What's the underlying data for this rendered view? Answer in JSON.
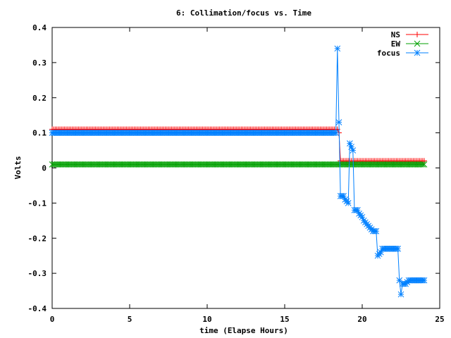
{
  "chart_data": {
    "type": "line",
    "title": "6: Collimation/focus vs. Time",
    "xlabel": "time (Elapse Hours)",
    "ylabel": "Volts",
    "xlim": [
      0,
      25
    ],
    "ylim": [
      -0.4,
      0.4
    ],
    "x_ticks": [
      "0",
      "5",
      "10",
      "15",
      "20",
      "25"
    ],
    "y_ticks": [
      "0.4",
      "0.3",
      "0.2",
      "0.1",
      "0",
      "-0.1",
      "-0.2",
      "-0.3",
      "-0.4"
    ],
    "grid": false,
    "legend_position": "top-right",
    "series": [
      {
        "name": "NS",
        "color": "#ff0000",
        "marker": "plus",
        "points": [
          [
            0,
            0.11
          ],
          [
            18.4,
            0.11
          ],
          [
            18.5,
            0.1
          ],
          [
            18.6,
            0.02
          ],
          [
            24,
            0.02
          ]
        ]
      },
      {
        "name": "EW",
        "color": "#00a000",
        "marker": "cross",
        "points": [
          [
            0,
            0.01
          ],
          [
            24,
            0.01
          ]
        ]
      },
      {
        "name": "focus",
        "color": "#0080ff",
        "marker": "star",
        "points": [
          [
            0,
            0.1
          ],
          [
            18.3,
            0.1
          ],
          [
            18.4,
            0.34
          ],
          [
            18.5,
            0.13
          ],
          [
            18.6,
            -0.08
          ],
          [
            18.8,
            -0.08
          ],
          [
            18.9,
            -0.09
          ],
          [
            19.1,
            -0.1
          ],
          [
            19.2,
            0.07
          ],
          [
            19.3,
            0.06
          ],
          [
            19.4,
            0.05
          ],
          [
            19.5,
            -0.12
          ],
          [
            19.7,
            -0.12
          ],
          [
            19.8,
            -0.13
          ],
          [
            20.0,
            -0.14
          ],
          [
            20.1,
            -0.15
          ],
          [
            20.3,
            -0.16
          ],
          [
            20.5,
            -0.17
          ],
          [
            20.7,
            -0.18
          ],
          [
            20.9,
            -0.18
          ],
          [
            21.0,
            -0.25
          ],
          [
            21.2,
            -0.24
          ],
          [
            21.3,
            -0.23
          ],
          [
            21.6,
            -0.23
          ],
          [
            22.0,
            -0.23
          ],
          [
            22.3,
            -0.23
          ],
          [
            22.4,
            -0.32
          ],
          [
            22.5,
            -0.36
          ],
          [
            22.6,
            -0.33
          ],
          [
            22.8,
            -0.33
          ],
          [
            23.0,
            -0.32
          ],
          [
            23.5,
            -0.32
          ],
          [
            24.0,
            -0.32
          ]
        ]
      }
    ]
  }
}
